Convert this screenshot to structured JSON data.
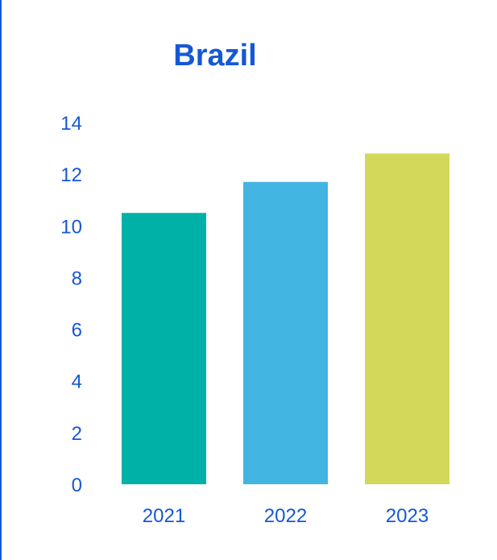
{
  "chart_data": {
    "type": "bar",
    "title": "Brazil",
    "categories": [
      "2021",
      "2022",
      "2023"
    ],
    "values": [
      10.5,
      11.7,
      12.8
    ],
    "colors": [
      "#00b1a7",
      "#43b5e3",
      "#d3d85a"
    ],
    "yticks": [
      "0",
      "2",
      "4",
      "6",
      "8",
      "10",
      "12",
      "14"
    ],
    "ylim": [
      0,
      14
    ],
    "xlabel": "",
    "ylabel": "",
    "grid": false,
    "legend": "none"
  }
}
